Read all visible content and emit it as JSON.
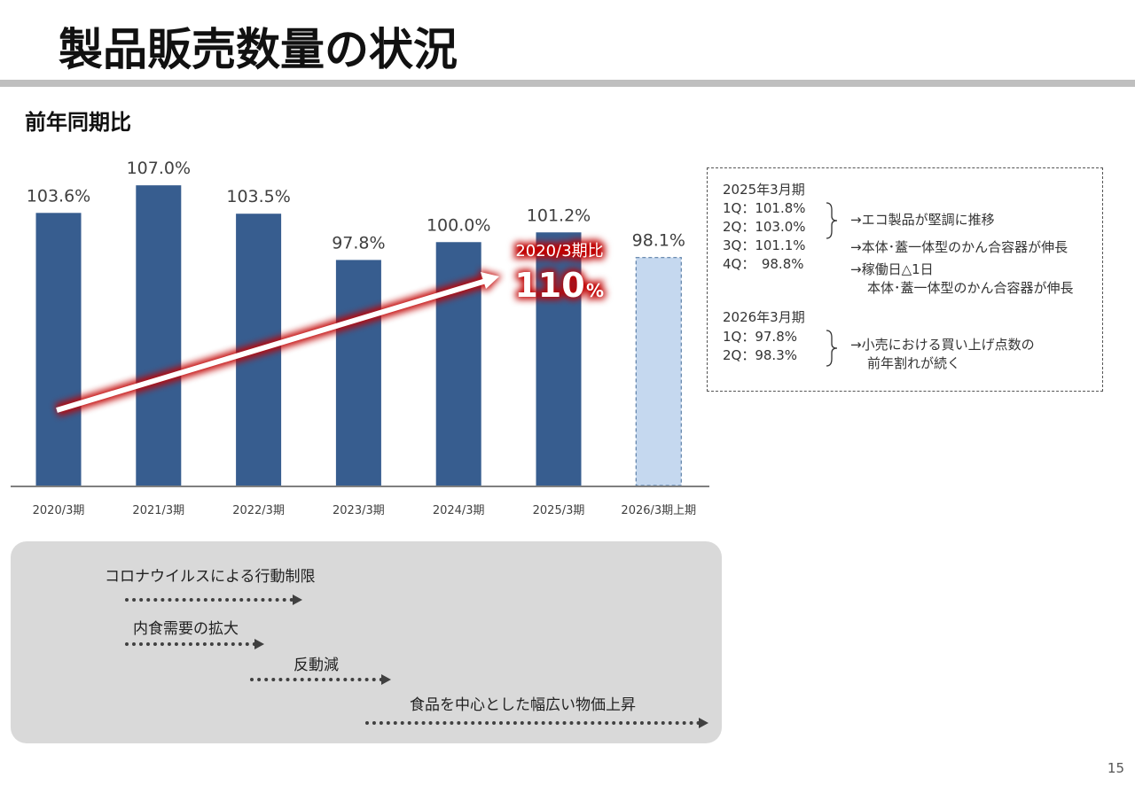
{
  "header": {
    "title": "製品販売数量の状況",
    "section": "前年同期比"
  },
  "chart_data": {
    "type": "bar",
    "title": "前年同期比",
    "categories": [
      "2020/3期",
      "2021/3期",
      "2022/3期",
      "2023/3期",
      "2024/3期",
      "2025/3期",
      "2026/3期上期"
    ],
    "values": [
      103.6,
      107.0,
      103.5,
      97.8,
      100.0,
      101.2,
      98.1
    ],
    "value_labels": [
      "103.6%",
      "107.0%",
      "103.5%",
      "97.8%",
      "100.0%",
      "101.2%",
      "98.1%"
    ],
    "forecast_index": 6,
    "ylim": [
      70,
      108
    ],
    "grid": false,
    "colors": {
      "bar": "#375d8f",
      "forecast_bar": "#c5d8ef",
      "forecast_border": "#5b7fa8",
      "axis": "#7f7f7f",
      "arrow": "#ffffff",
      "glow": "#c00000"
    },
    "annotation": {
      "label": "2020/3期比",
      "value": "110",
      "unit": "%"
    }
  },
  "notes": {
    "fy2025": {
      "heading": "2025年3月期",
      "quarters": [
        "1Q：101.8%",
        "2Q：103.0%",
        "3Q：101.1%",
        "4Q：　98.8%"
      ],
      "comments": [
        "→エコ製品が堅調に推移",
        "→本体･蓋一体型のかん合容器が伸長",
        "→稼働日△1日",
        "本体･蓋一体型のかん合容器が伸長"
      ]
    },
    "fy2026": {
      "heading": "2026年3月期",
      "quarters": [
        "1Q：97.8%",
        "2Q：98.3%"
      ],
      "comments": [
        "→小売における買い上げ点数の",
        "前年割れが続く"
      ]
    }
  },
  "timeline": [
    {
      "label": "コロナウイルスによる行動制限"
    },
    {
      "label": "内食需要の拡大"
    },
    {
      "label": "反動減"
    },
    {
      "label": "食品を中心とした幅広い物価上昇"
    }
  ],
  "page_number": "15"
}
